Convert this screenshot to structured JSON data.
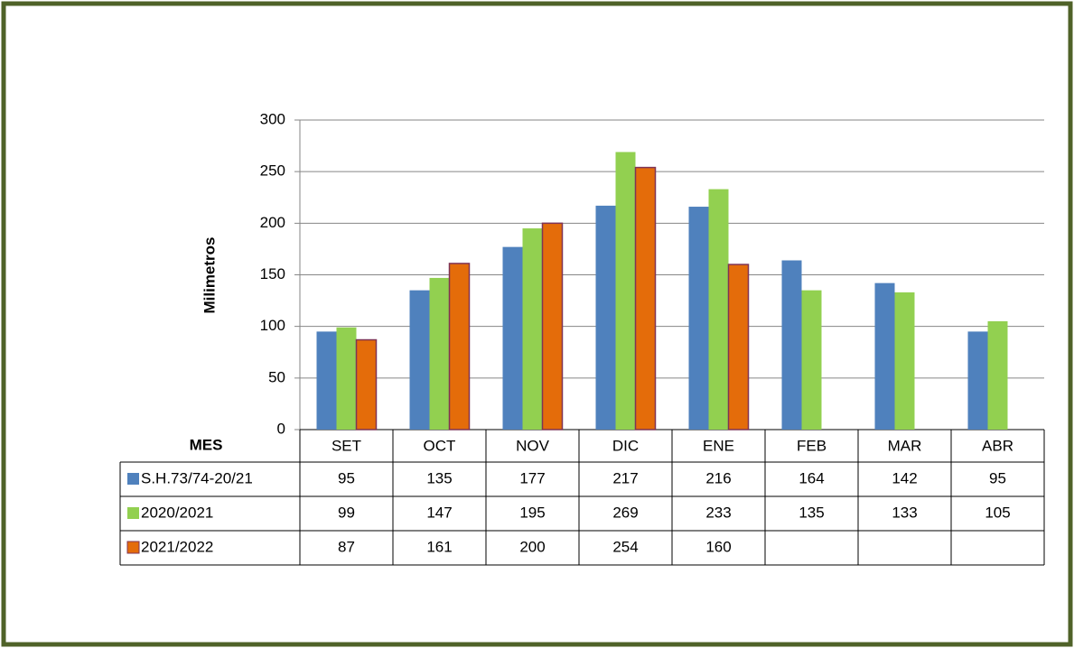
{
  "chart_data": {
    "type": "bar",
    "y_label": "Milimetros",
    "x_label": "MES",
    "categories": [
      "SET",
      "OCT",
      "NOV",
      "DIC",
      "ENE",
      "FEB",
      "MAR",
      "ABR"
    ],
    "series": [
      {
        "name": "S.H.73/74-20/21",
        "color": "#4f81bd",
        "values": [
          95,
          135,
          177,
          217,
          216,
          164,
          142,
          95
        ]
      },
      {
        "name": "2020/2021",
        "color": "#92d050",
        "values": [
          99,
          147,
          195,
          269,
          233,
          135,
          133,
          105
        ]
      },
      {
        "name": "2021/2022",
        "color": "#e46c0a",
        "values": [
          87,
          161,
          200,
          254,
          160,
          null,
          null,
          null
        ]
      }
    ],
    "ylim": [
      0,
      300
    ],
    "yticks": [
      0,
      50,
      100,
      150,
      200,
      250,
      300
    ],
    "grid": true
  }
}
